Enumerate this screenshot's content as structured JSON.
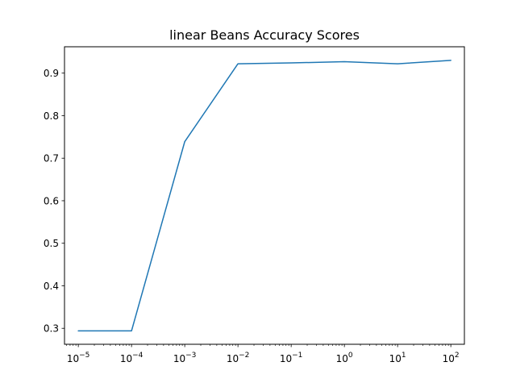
{
  "chart_data": {
    "type": "line",
    "title": "linear Beans Accuracy Scores",
    "xlabel": "",
    "ylabel": "",
    "x_scale": "log",
    "x": [
      1e-05,
      0.0001,
      0.001,
      0.01,
      0.1,
      1,
      10,
      100
    ],
    "series": [
      {
        "values": [
          0.294,
          0.294,
          0.739,
          0.922,
          0.924,
          0.927,
          0.922,
          0.93
        ]
      }
    ],
    "xlim": [
      5.5e-06,
      180
    ],
    "ylim": [
      0.2625,
      0.962
    ],
    "x_ticks": [
      {
        "value": 1e-05,
        "base": "10",
        "exp": "−5"
      },
      {
        "value": 0.0001,
        "base": "10",
        "exp": "−4"
      },
      {
        "value": 0.001,
        "base": "10",
        "exp": "−3"
      },
      {
        "value": 0.01,
        "base": "10",
        "exp": "−2"
      },
      {
        "value": 0.1,
        "base": "10",
        "exp": "−1"
      },
      {
        "value": 1,
        "base": "10",
        "exp": "0"
      },
      {
        "value": 10,
        "base": "10",
        "exp": "1"
      },
      {
        "value": 100,
        "base": "10",
        "exp": "2"
      }
    ],
    "y_ticks": [
      "0.3",
      "0.4",
      "0.5",
      "0.6",
      "0.7",
      "0.8",
      "0.9"
    ],
    "grid": false,
    "line_color": "#1f77b4"
  }
}
